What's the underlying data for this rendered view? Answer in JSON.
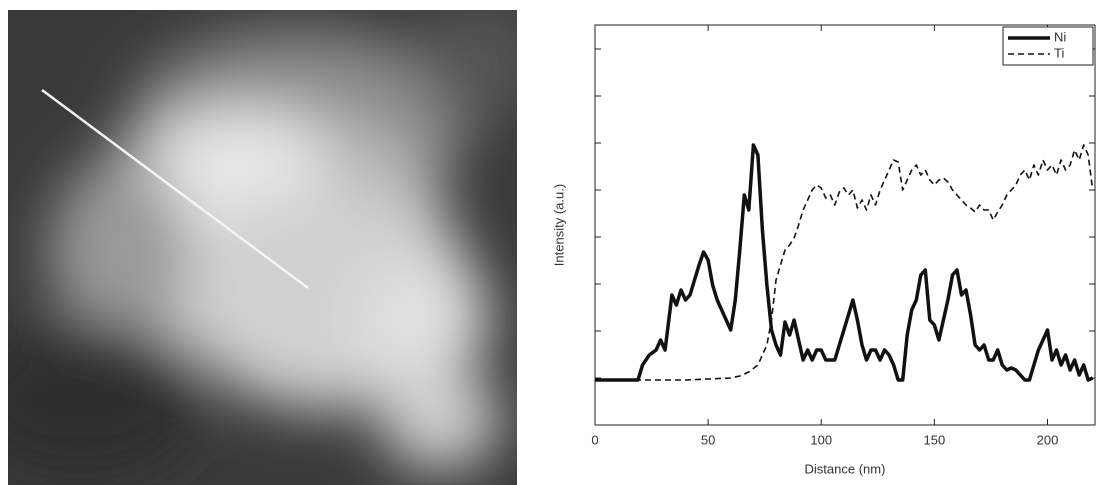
{
  "chart_data": {
    "type": "line",
    "x_label": "Distance (nm)",
    "y_label": "Intensity (a.u.)",
    "xlim": [
      0,
      221
    ],
    "xticks": [
      0,
      50,
      100,
      150,
      200
    ],
    "ylim": [
      0,
      400
    ],
    "yticks": [
      47,
      94,
      141,
      188,
      235,
      282,
      329,
      376
    ],
    "legend": "top-right",
    "series": [
      {
        "name": "Ni",
        "color": "#111111",
        "dash": "solid",
        "x": [
          0,
          19,
          21,
          24,
          27,
          29,
          31,
          34,
          36,
          38,
          40,
          42,
          44,
          46,
          48,
          50,
          52,
          54,
          56,
          58,
          60,
          62,
          64,
          66,
          68,
          70,
          72,
          74,
          76,
          78,
          80,
          82,
          84,
          86,
          88,
          90,
          92,
          94,
          96,
          98,
          100,
          102,
          104,
          106,
          108,
          110,
          112,
          114,
          116,
          118,
          120,
          122,
          124,
          126,
          128,
          130,
          132,
          134,
          136,
          138,
          140,
          142,
          144,
          146,
          148,
          150,
          152,
          154,
          156,
          158,
          160,
          162,
          164,
          166,
          168,
          170,
          172,
          174,
          176,
          178,
          180,
          182,
          184,
          186,
          188,
          190,
          192,
          194,
          196,
          198,
          200,
          202,
          204,
          206,
          208,
          210,
          212,
          214,
          216,
          218,
          220
        ],
        "values": [
          45,
          45,
          60,
          70,
          75,
          85,
          75,
          130,
          120,
          135,
          125,
          130,
          145,
          160,
          173,
          165,
          140,
          125,
          115,
          105,
          95,
          125,
          175,
          230,
          215,
          280,
          270,
          195,
          140,
          95,
          80,
          70,
          103,
          90,
          105,
          85,
          65,
          75,
          65,
          75,
          75,
          65,
          65,
          65,
          80,
          95,
          110,
          125,
          105,
          80,
          65,
          75,
          75,
          65,
          75,
          70,
          60,
          45,
          45,
          90,
          115,
          125,
          150,
          155,
          105,
          100,
          85,
          105,
          125,
          150,
          155,
          130,
          135,
          110,
          80,
          75,
          80,
          65,
          65,
          75,
          60,
          55,
          57,
          55,
          50,
          45,
          45,
          60,
          75,
          85,
          95,
          65,
          75,
          60,
          70,
          55,
          65,
          50,
          60,
          45,
          47
        ]
      },
      {
        "name": "Ti",
        "color": "#111111",
        "dash": "dashed",
        "x": [
          0,
          10,
          20,
          30,
          40,
          50,
          60,
          64,
          68,
          72,
          74,
          76,
          78,
          80,
          82,
          84,
          86,
          88,
          90,
          92,
          94,
          96,
          98,
          100,
          102,
          104,
          106,
          108,
          110,
          112,
          114,
          116,
          118,
          120,
          122,
          124,
          126,
          128,
          130,
          132,
          134,
          136,
          138,
          140,
          142,
          144,
          146,
          148,
          150,
          152,
          154,
          156,
          158,
          160,
          162,
          164,
          166,
          168,
          170,
          172,
          174,
          176,
          178,
          180,
          182,
          184,
          186,
          188,
          190,
          192,
          194,
          196,
          198,
          200,
          202,
          204,
          206,
          208,
          210,
          212,
          214,
          216,
          218,
          220
        ],
        "values": [
          45,
          45,
          45,
          45,
          45,
          46,
          47,
          49,
          53,
          60,
          70,
          80,
          105,
          145,
          160,
          175,
          180,
          187,
          200,
          215,
          225,
          235,
          240,
          237,
          227,
          230,
          220,
          233,
          237,
          230,
          235,
          217,
          225,
          215,
          230,
          220,
          235,
          245,
          255,
          265,
          263,
          235,
          245,
          255,
          260,
          250,
          255,
          245,
          240,
          245,
          247,
          243,
          235,
          230,
          225,
          220,
          217,
          213,
          220,
          215,
          215,
          205,
          213,
          220,
          230,
          235,
          240,
          250,
          255,
          245,
          260,
          250,
          265,
          255,
          260,
          250,
          265,
          255,
          260,
          275,
          265,
          280,
          270,
          235
        ]
      }
    ]
  }
}
